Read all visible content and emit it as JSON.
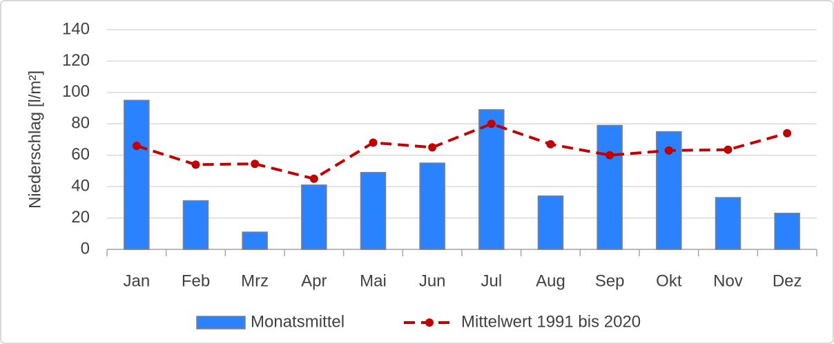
{
  "chart_data": {
    "type": "combo",
    "y_label": "Niederschlag [l/m²]",
    "categories": [
      "Jan",
      "Feb",
      "Mrz",
      "Apr",
      "Mai",
      "Jun",
      "Jul",
      "Aug",
      "Sep",
      "Okt",
      "Nov",
      "Dez"
    ],
    "series": [
      {
        "name": "Monatsmittel",
        "type": "bar",
        "color": "#2a82ff",
        "values": [
          95,
          31,
          11,
          41,
          49,
          55,
          89,
          34,
          79,
          75,
          33,
          23
        ]
      },
      {
        "name": "Mittelwert 1991 bis 2020",
        "type": "line",
        "color": "#c00000",
        "values": [
          66,
          54,
          54.5,
          45,
          68,
          65,
          80,
          67,
          60,
          63,
          63.5,
          74
        ]
      }
    ],
    "ylim": [
      0,
      140
    ],
    "yticks": [
      0,
      20,
      40,
      60,
      80,
      100,
      120,
      140
    ],
    "grid": true,
    "legend": "bottom"
  }
}
